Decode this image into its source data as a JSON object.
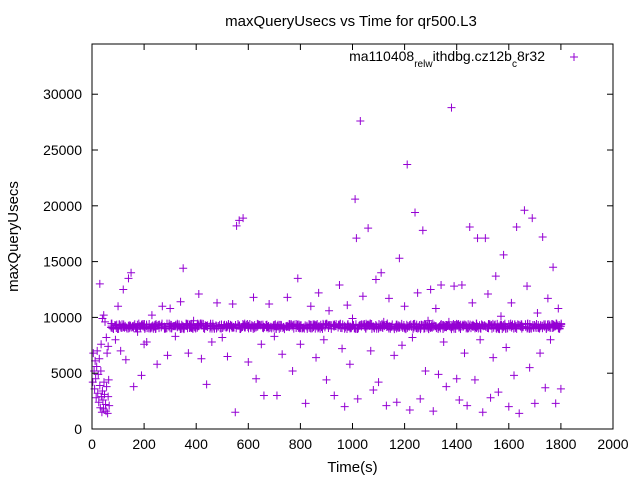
{
  "chart_data": {
    "type": "scatter",
    "title": "maxQueryUsecs vs Time for qr500.L3",
    "xlabel": "Time(s)",
    "ylabel": "maxQueryUsecs",
    "xlim": [
      0,
      2000
    ],
    "ylim": [
      0,
      34500
    ],
    "xticks": [
      0,
      200,
      400,
      600,
      800,
      1000,
      1200,
      1400,
      1600,
      1800,
      2000
    ],
    "yticks": [
      0,
      5000,
      10000,
      15000,
      20000,
      25000,
      30000
    ],
    "grid": false,
    "legend_position": "top-right",
    "color": "#9400d3",
    "marker": "plus",
    "series": [
      {
        "name": "ma110408_rel_withdbg.cz12b_c8r32",
        "legend_label": {
          "parts": [
            {
              "text": "ma110408",
              "sub": false
            },
            {
              "text": "rel",
              "sub": true
            },
            {
              "text": "w",
              "sub": true
            },
            {
              "text": "ithdbg.cz12b",
              "sub": false
            },
            {
              "text": "c",
              "sub": true
            },
            {
              "text": "8r32",
              "sub": false
            }
          ]
        },
        "band": {
          "x_start": 70,
          "x_end": 1800,
          "x_step": 6,
          "center": 9200,
          "spread": 500
        },
        "points": [
          [
            3,
            4200
          ],
          [
            5,
            6800
          ],
          [
            8,
            5200
          ],
          [
            10,
            3600
          ],
          [
            12,
            6100
          ],
          [
            14,
            4500
          ],
          [
            16,
            2800
          ],
          [
            18,
            5600
          ],
          [
            20,
            7000
          ],
          [
            22,
            3200
          ],
          [
            24,
            4900
          ],
          [
            26,
            2400
          ],
          [
            28,
            6300
          ],
          [
            30,
            3900
          ],
          [
            32,
            1900
          ],
          [
            34,
            5200
          ],
          [
            36,
            2900
          ],
          [
            38,
            1500
          ],
          [
            40,
            3400
          ],
          [
            42,
            2600
          ],
          [
            44,
            1800
          ],
          [
            46,
            4200
          ],
          [
            48,
            3100
          ],
          [
            50,
            9600
          ],
          [
            52,
            2200
          ],
          [
            54,
            1600
          ],
          [
            56,
            3800
          ],
          [
            58,
            6800
          ],
          [
            60,
            1400
          ],
          [
            62,
            2900
          ],
          [
            64,
            4400
          ],
          [
            66,
            2100
          ],
          [
            30,
            13000
          ],
          [
            45,
            10200
          ],
          [
            55,
            8200
          ],
          [
            62,
            7400
          ],
          [
            40,
            9900
          ],
          [
            35,
            7600
          ],
          [
            90,
            8000
          ],
          [
            100,
            11000
          ],
          [
            110,
            7000
          ],
          [
            120,
            12500
          ],
          [
            130,
            6200
          ],
          [
            140,
            13500
          ],
          [
            150,
            14000
          ],
          [
            160,
            3800
          ],
          [
            175,
            8700
          ],
          [
            190,
            4800
          ],
          [
            200,
            7600
          ],
          [
            210,
            7800
          ],
          [
            230,
            10200
          ],
          [
            250,
            5800
          ],
          [
            270,
            11000
          ],
          [
            290,
            6600
          ],
          [
            300,
            10800
          ],
          [
            320,
            8300
          ],
          [
            340,
            11400
          ],
          [
            350,
            14400
          ],
          [
            370,
            6800
          ],
          [
            390,
            9700
          ],
          [
            410,
            12100
          ],
          [
            420,
            6300
          ],
          [
            440,
            4000
          ],
          [
            460,
            7800
          ],
          [
            480,
            11300
          ],
          [
            500,
            8200
          ],
          [
            520,
            6500
          ],
          [
            540,
            11200
          ],
          [
            550,
            1500
          ],
          [
            555,
            18200
          ],
          [
            565,
            18700
          ],
          [
            580,
            18900
          ],
          [
            600,
            6000
          ],
          [
            620,
            11800
          ],
          [
            630,
            4500
          ],
          [
            650,
            7600
          ],
          [
            660,
            3000
          ],
          [
            680,
            11200
          ],
          [
            700,
            8300
          ],
          [
            710,
            3000
          ],
          [
            730,
            6700
          ],
          [
            750,
            11800
          ],
          [
            770,
            5200
          ],
          [
            790,
            13500
          ],
          [
            800,
            7600
          ],
          [
            820,
            2300
          ],
          [
            840,
            11000
          ],
          [
            860,
            6400
          ],
          [
            870,
            12200
          ],
          [
            890,
            8000
          ],
          [
            900,
            4400
          ],
          [
            910,
            10600
          ],
          [
            930,
            3000
          ],
          [
            950,
            12900
          ],
          [
            960,
            7200
          ],
          [
            970,
            2000
          ],
          [
            980,
            11100
          ],
          [
            990,
            5800
          ],
          [
            1000,
            9900
          ],
          [
            1010,
            20600
          ],
          [
            1015,
            17100
          ],
          [
            1020,
            2700
          ],
          [
            1030,
            27600
          ],
          [
            1040,
            11900
          ],
          [
            1060,
            18000
          ],
          [
            1070,
            7000
          ],
          [
            1080,
            3500
          ],
          [
            1090,
            13400
          ],
          [
            1100,
            4200
          ],
          [
            1110,
            14000
          ],
          [
            1120,
            9600
          ],
          [
            1130,
            2100
          ],
          [
            1140,
            11700
          ],
          [
            1160,
            6600
          ],
          [
            1170,
            2400
          ],
          [
            1180,
            15300
          ],
          [
            1190,
            7500
          ],
          [
            1200,
            11000
          ],
          [
            1210,
            23700
          ],
          [
            1220,
            1700
          ],
          [
            1230,
            8200
          ],
          [
            1240,
            19400
          ],
          [
            1250,
            12200
          ],
          [
            1260,
            2700
          ],
          [
            1270,
            17800
          ],
          [
            1280,
            5200
          ],
          [
            1290,
            9700
          ],
          [
            1300,
            12500
          ],
          [
            1310,
            1600
          ],
          [
            1320,
            10800
          ],
          [
            1330,
            4900
          ],
          [
            1340,
            12900
          ],
          [
            1350,
            7800
          ],
          [
            1360,
            3800
          ],
          [
            1370,
            9600
          ],
          [
            1380,
            28800
          ],
          [
            1390,
            12800
          ],
          [
            1400,
            4500
          ],
          [
            1410,
            2600
          ],
          [
            1420,
            12900
          ],
          [
            1430,
            6800
          ],
          [
            1440,
            2100
          ],
          [
            1450,
            18100
          ],
          [
            1460,
            11300
          ],
          [
            1470,
            4400
          ],
          [
            1480,
            17100
          ],
          [
            1490,
            8000
          ],
          [
            1500,
            1500
          ],
          [
            1510,
            17100
          ],
          [
            1520,
            12100
          ],
          [
            1530,
            2800
          ],
          [
            1540,
            6400
          ],
          [
            1550,
            13700
          ],
          [
            1560,
            3300
          ],
          [
            1570,
            10100
          ],
          [
            1580,
            15600
          ],
          [
            1590,
            7300
          ],
          [
            1600,
            2000
          ],
          [
            1610,
            11300
          ],
          [
            1620,
            4800
          ],
          [
            1630,
            18100
          ],
          [
            1640,
            1400
          ],
          [
            1650,
            9000
          ],
          [
            1660,
            19600
          ],
          [
            1670,
            12800
          ],
          [
            1680,
            5500
          ],
          [
            1690,
            18900
          ],
          [
            1700,
            2300
          ],
          [
            1710,
            10400
          ],
          [
            1720,
            6800
          ],
          [
            1730,
            17200
          ],
          [
            1740,
            3700
          ],
          [
            1750,
            11700
          ],
          [
            1760,
            8000
          ],
          [
            1770,
            14500
          ],
          [
            1780,
            2300
          ],
          [
            1790,
            10800
          ],
          [
            1800,
            3600
          ]
        ]
      }
    ]
  }
}
